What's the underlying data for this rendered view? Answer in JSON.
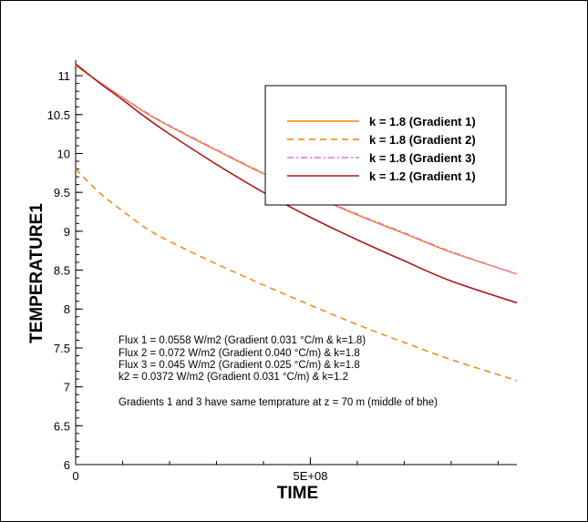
{
  "chart_data": {
    "type": "line",
    "xlabel": "TIME",
    "ylabel": "TEMPERATURE1",
    "xlim": [
      0,
      940000000
    ],
    "ylim": [
      6,
      11.2
    ],
    "x_ticks": [
      0,
      500000000
    ],
    "x_tick_labels": [
      "0",
      "5E+08"
    ],
    "y_ticks": [
      6,
      6.5,
      7,
      7.5,
      8,
      8.5,
      9,
      9.5,
      10,
      10.5,
      11
    ],
    "y_tick_labels": [
      "6",
      "6.5",
      "7",
      "7.5",
      "8",
      "8.5",
      "9",
      "9.5",
      "10",
      "10.5",
      "11"
    ],
    "grid": false,
    "legend_position": "top-right",
    "series": [
      {
        "name": "k = 1.8 (Gradient 1)",
        "color": "#f08000",
        "dash": "solid",
        "x": [
          0,
          50000000,
          100000000,
          150000000,
          200000000,
          300000000,
          400000000,
          500000000,
          600000000,
          700000000,
          800000000,
          940000000
        ],
        "y": [
          11.13,
          10.92,
          10.72,
          10.52,
          10.35,
          10.04,
          9.74,
          9.47,
          9.21,
          8.97,
          8.73,
          8.45
        ]
      },
      {
        "name": "k = 1.8 (Gradient 2)",
        "color": "#f08000",
        "dash": "dashed",
        "x": [
          0,
          50000000,
          100000000,
          150000000,
          200000000,
          300000000,
          400000000,
          500000000,
          600000000,
          700000000,
          800000000,
          940000000
        ],
        "y": [
          9.8,
          9.5,
          9.26,
          9.04,
          8.87,
          8.58,
          8.31,
          8.05,
          7.8,
          7.57,
          7.35,
          7.08
        ]
      },
      {
        "name": "k = 1.8 (Gradient 3)",
        "color": "#e070e0",
        "dash": "dashdot",
        "x": [
          0,
          50000000,
          100000000,
          150000000,
          200000000,
          300000000,
          400000000,
          500000000,
          600000000,
          700000000,
          800000000,
          940000000
        ],
        "y": [
          11.14,
          10.92,
          10.72,
          10.53,
          10.36,
          10.05,
          9.75,
          9.48,
          9.22,
          8.98,
          8.74,
          8.45
        ]
      },
      {
        "name": "k = 1.2 (Gradient 1)",
        "color": "#b01818",
        "dash": "solid",
        "x": [
          0,
          50000000,
          100000000,
          150000000,
          200000000,
          300000000,
          400000000,
          500000000,
          600000000,
          700000000,
          800000000,
          940000000
        ],
        "y": [
          11.15,
          10.91,
          10.69,
          10.46,
          10.25,
          9.86,
          9.5,
          9.18,
          8.89,
          8.62,
          8.36,
          8.08
        ]
      }
    ],
    "annotations": [
      "Flux 1 = 0.0558 W/m2 (Gradient 0.031 °C/m & k=1.8)",
      "Flux 2 = 0.072 W/m2 (Gradient 0.040 °C/m) & k=1.8",
      "Flux 3 = 0.045 W/m2 (Gradient 0.025 °C/m) & k=1.8",
      "k2 = 0.0372 W/m2 (Gradient 0.031 °C/m) & k=1.2",
      "Gradients 1 and 3 have same temprature at z = 70 m (middle of bhe)"
    ]
  }
}
